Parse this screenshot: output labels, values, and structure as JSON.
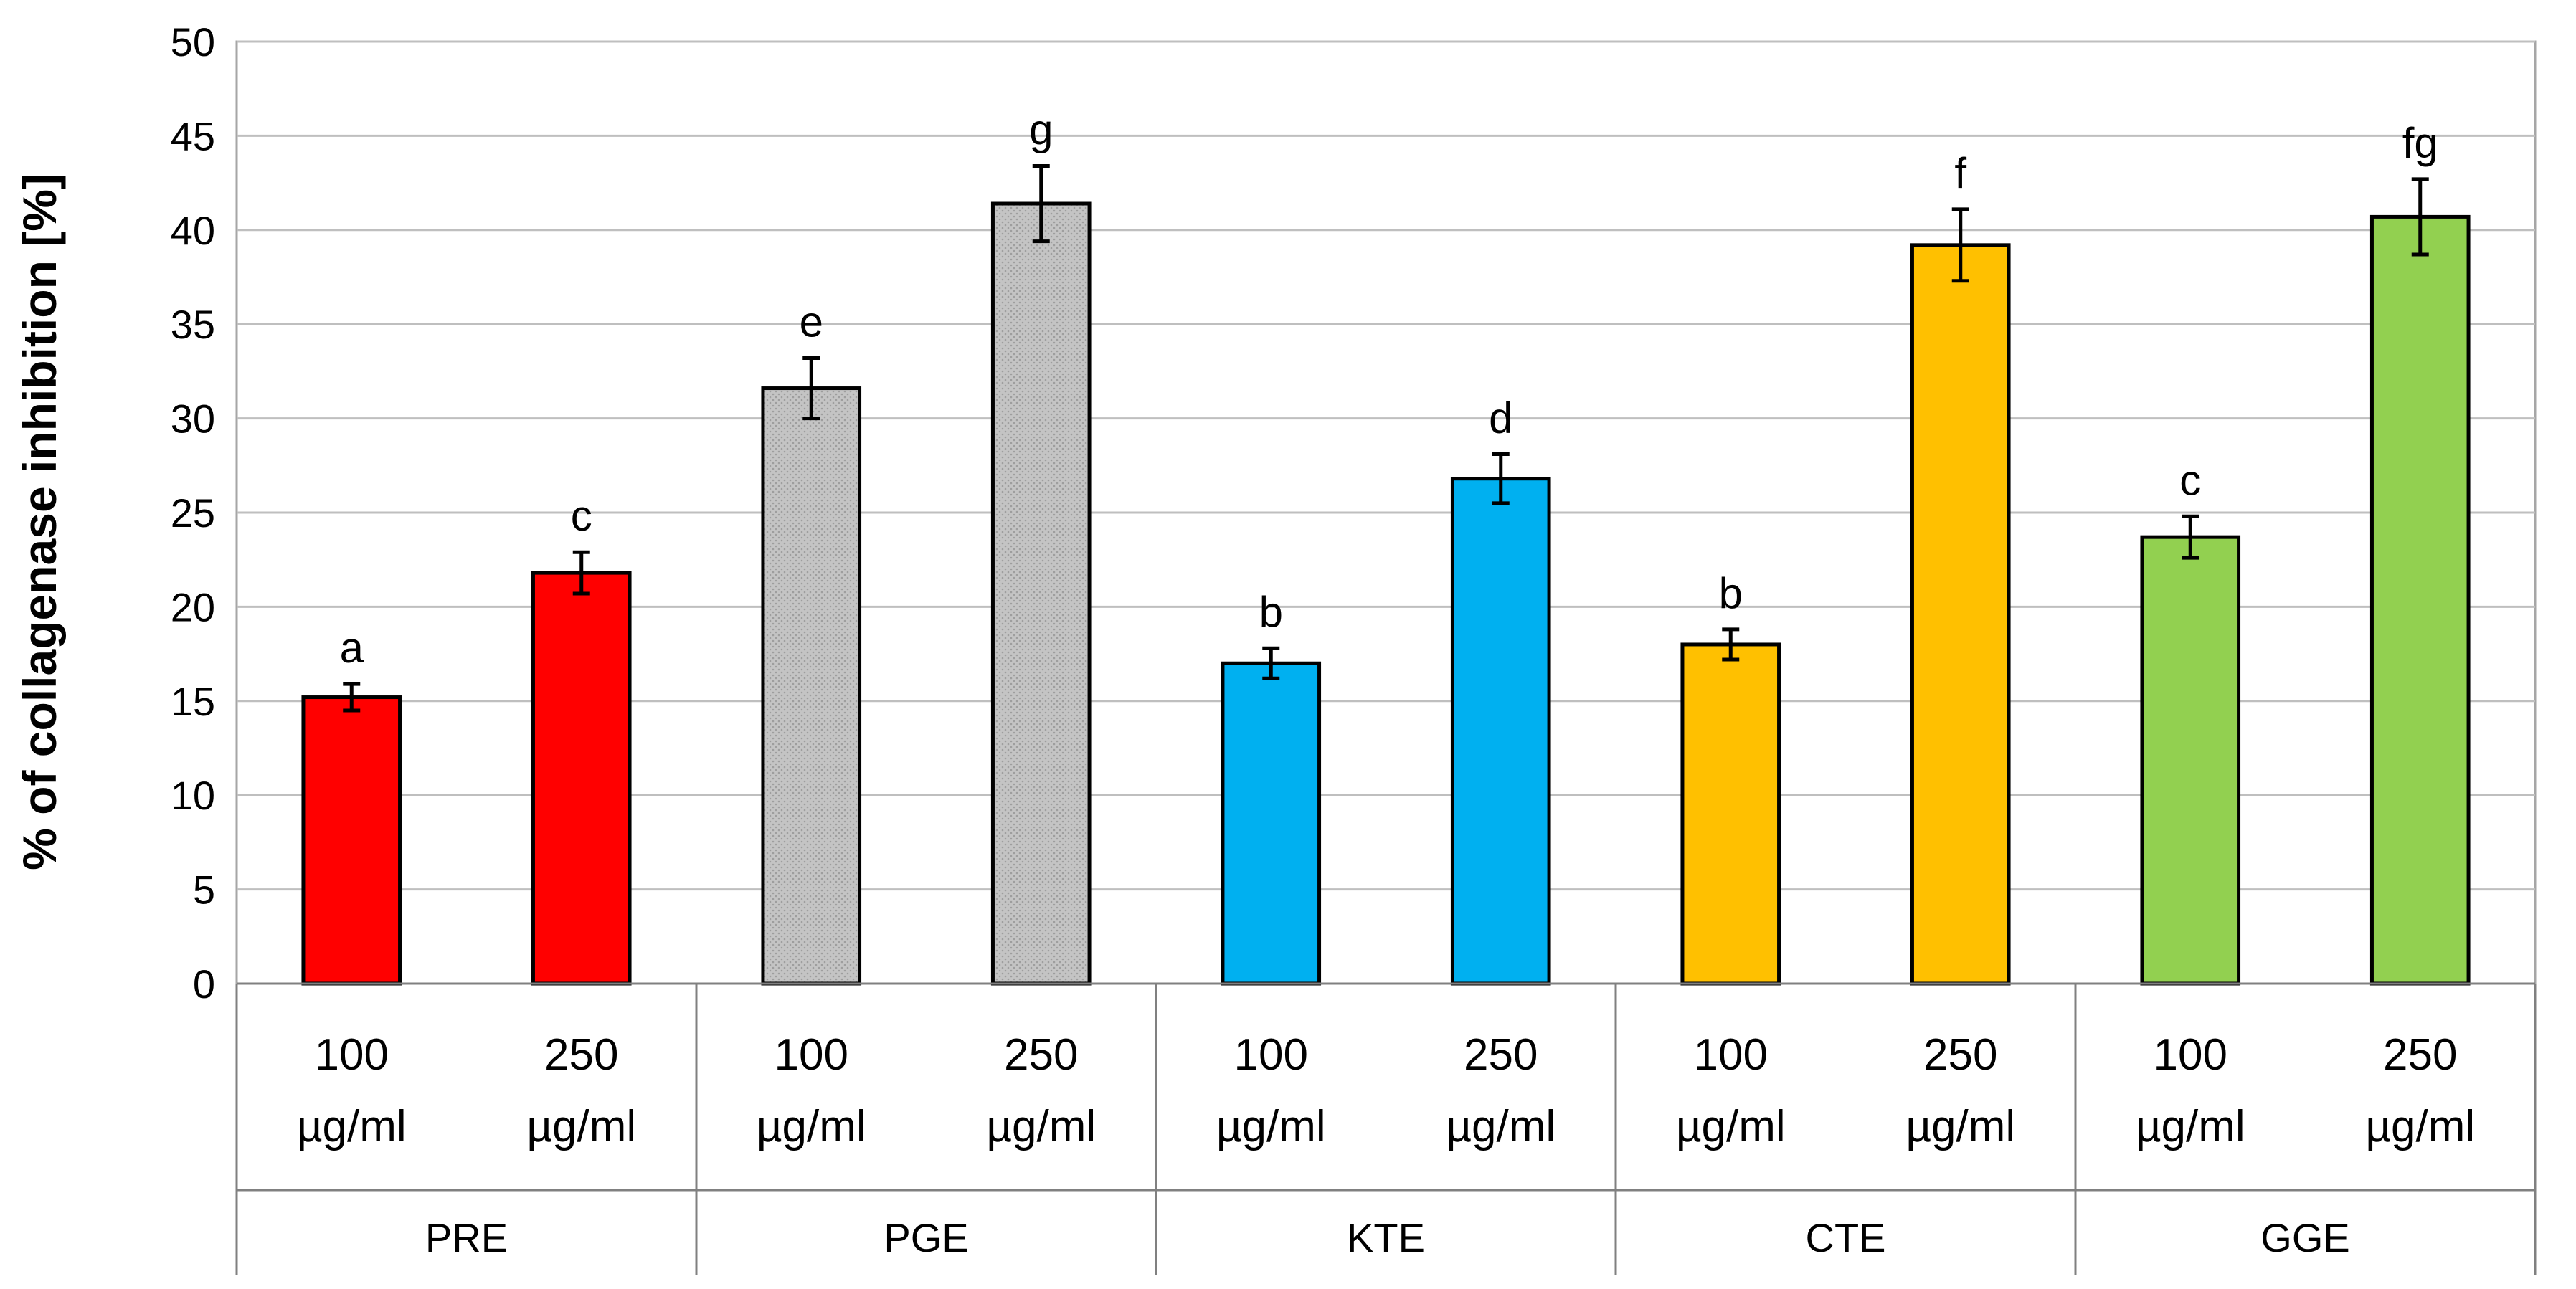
{
  "chart_data": {
    "type": "bar",
    "title": "",
    "xlabel": "",
    "ylabel": "% of collagenase inhibition [%]",
    "ylim": [
      0,
      50
    ],
    "yticks": [
      0,
      5,
      10,
      15,
      20,
      25,
      30,
      35,
      40,
      45,
      50
    ],
    "grid": true,
    "groups": [
      {
        "name": "PRE",
        "color": "#FF0000",
        "bars": [
          {
            "label_line1": "100",
            "label_line2": "µg/ml",
            "value": 15.2,
            "error": 0.7,
            "sig": "a"
          },
          {
            "label_line1": "250",
            "label_line2": "µg/ml",
            "value": 21.8,
            "error": 1.1,
            "sig": "c"
          }
        ]
      },
      {
        "name": "PGE",
        "color": "#BFBFBF",
        "bars": [
          {
            "label_line1": "100",
            "label_line2": "µg/ml",
            "value": 31.6,
            "error": 1.6,
            "sig": "e"
          },
          {
            "label_line1": "250",
            "label_line2": "µg/ml",
            "value": 41.4,
            "error": 2.0,
            "sig": "g"
          }
        ]
      },
      {
        "name": "KTE",
        "color": "#00B0F0",
        "bars": [
          {
            "label_line1": "100",
            "label_line2": "µg/ml",
            "value": 17.0,
            "error": 0.8,
            "sig": "b"
          },
          {
            "label_line1": "250",
            "label_line2": "µg/ml",
            "value": 26.8,
            "error": 1.3,
            "sig": "d"
          }
        ]
      },
      {
        "name": "CTE",
        "color": "#FFC000",
        "bars": [
          {
            "label_line1": "100",
            "label_line2": "µg/ml",
            "value": 18.0,
            "error": 0.8,
            "sig": "b"
          },
          {
            "label_line1": "250",
            "label_line2": "µg/ml",
            "value": 39.2,
            "error": 1.9,
            "sig": "f"
          }
        ]
      },
      {
        "name": "GGE",
        "color": "#92D050",
        "bars": [
          {
            "label_line1": "100",
            "label_line2": "µg/ml",
            "value": 23.7,
            "error": 1.1,
            "sig": "c"
          },
          {
            "label_line1": "250",
            "label_line2": "µg/ml",
            "value": 40.7,
            "error": 2.0,
            "sig": "fg"
          }
        ]
      }
    ]
  }
}
